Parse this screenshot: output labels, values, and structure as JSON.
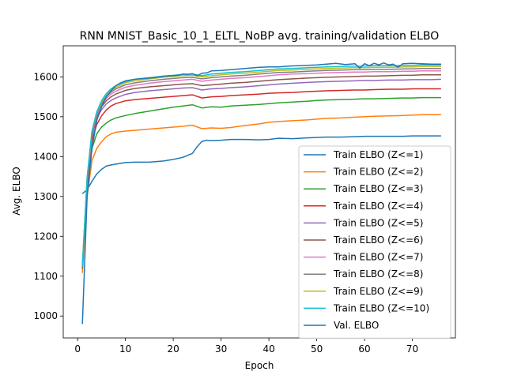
{
  "chart_data": {
    "type": "line",
    "title": "RNN MNIST_Basic_10_1_ELTL_NoBP avg. training/validation ELBO",
    "xlabel": "Epoch",
    "ylabel": "Avg. ELBO",
    "xlim": [
      -3,
      79
    ],
    "ylim": [
      945,
      1678
    ],
    "xticks": [
      0,
      10,
      20,
      30,
      40,
      50,
      60,
      70
    ],
    "yticks": [
      1000,
      1100,
      1200,
      1300,
      1400,
      1500,
      1600
    ],
    "legend_position": "lower-right",
    "series": [
      {
        "name": "Train ELBO (Z<=1)",
        "color": "#1f77b4",
        "x": [
          1,
          2,
          3,
          4,
          5,
          6,
          7,
          8,
          10,
          12,
          15,
          18,
          20,
          22,
          24,
          25,
          26,
          27,
          28,
          30,
          32,
          35,
          38,
          40,
          42,
          45,
          48,
          50,
          52,
          55,
          58,
          60,
          62,
          65,
          68,
          70,
          72,
          74,
          76
        ],
        "y": [
          1307,
          1317,
          1338,
          1356,
          1368,
          1376,
          1379,
          1381,
          1385,
          1386,
          1386,
          1389,
          1393,
          1398,
          1408,
          1425,
          1438,
          1441,
          1440,
          1441,
          1443,
          1443,
          1442,
          1443,
          1446,
          1445,
          1447,
          1448,
          1449,
          1449,
          1450,
          1451,
          1451,
          1451,
          1451,
          1452,
          1452,
          1452,
          1452
        ]
      },
      {
        "name": "Train ELBO (Z<=2)",
        "color": "#ff7f0e",
        "x": [
          1,
          2,
          3,
          4,
          5,
          6,
          7,
          8,
          10,
          12,
          15,
          18,
          20,
          22,
          24,
          26,
          28,
          30,
          32,
          35,
          38,
          40,
          42,
          45,
          48,
          50,
          52,
          55,
          58,
          60,
          62,
          65,
          68,
          70,
          72,
          74,
          76
        ],
        "y": [
          1108,
          1300,
          1390,
          1420,
          1437,
          1450,
          1457,
          1461,
          1464,
          1466,
          1469,
          1472,
          1474,
          1476,
          1479,
          1470,
          1472,
          1471,
          1473,
          1478,
          1482,
          1486,
          1488,
          1490,
          1492,
          1494,
          1496,
          1497,
          1499,
          1500,
          1501,
          1502,
          1503,
          1504,
          1505,
          1505,
          1505
        ]
      },
      {
        "name": "Train ELBO (Z<=3)",
        "color": "#2ca02c",
        "x": [
          1,
          2,
          3,
          4,
          5,
          6,
          7,
          8,
          10,
          12,
          15,
          18,
          20,
          22,
          24,
          26,
          28,
          30,
          32,
          35,
          38,
          40,
          42,
          45,
          48,
          50,
          52,
          55,
          58,
          60,
          62,
          65,
          68,
          70,
          72,
          74,
          76
        ],
        "y": [
          1118,
          1320,
          1420,
          1457,
          1474,
          1484,
          1492,
          1497,
          1503,
          1508,
          1514,
          1520,
          1524,
          1527,
          1530,
          1522,
          1525,
          1524,
          1527,
          1529,
          1531,
          1533,
          1535,
          1537,
          1539,
          1541,
          1542,
          1543,
          1544,
          1545,
          1545,
          1546,
          1547,
          1547,
          1548,
          1548,
          1548
        ]
      },
      {
        "name": "Train ELBO (Z<=4)",
        "color": "#d62728",
        "x": [
          1,
          2,
          3,
          4,
          5,
          6,
          7,
          8,
          10,
          12,
          15,
          18,
          20,
          22,
          24,
          26,
          28,
          30,
          32,
          35,
          38,
          40,
          42,
          45,
          48,
          50,
          52,
          55,
          58,
          60,
          62,
          65,
          68,
          70,
          72,
          74,
          76
        ],
        "y": [
          1120,
          1330,
          1440,
          1480,
          1502,
          1517,
          1527,
          1533,
          1540,
          1543,
          1546,
          1549,
          1551,
          1553,
          1555,
          1547,
          1550,
          1551,
          1553,
          1555,
          1557,
          1559,
          1560,
          1561,
          1563,
          1564,
          1565,
          1566,
          1567,
          1567,
          1568,
          1569,
          1569,
          1570,
          1570,
          1570,
          1570
        ]
      },
      {
        "name": "Train ELBO (Z<=5)",
        "color": "#9467bd",
        "x": [
          1,
          2,
          3,
          4,
          5,
          6,
          7,
          8,
          10,
          12,
          15,
          18,
          20,
          22,
          24,
          26,
          28,
          30,
          32,
          35,
          38,
          40,
          42,
          45,
          48,
          50,
          52,
          55,
          58,
          60,
          62,
          65,
          68,
          70,
          72,
          74,
          76
        ],
        "y": [
          1122,
          1335,
          1450,
          1495,
          1518,
          1532,
          1541,
          1547,
          1556,
          1561,
          1565,
          1568,
          1570,
          1572,
          1573,
          1567,
          1570,
          1571,
          1573,
          1575,
          1578,
          1580,
          1582,
          1584,
          1586,
          1587,
          1588,
          1589,
          1590,
          1591,
          1591,
          1592,
          1592,
          1593,
          1593,
          1593,
          1594
        ]
      },
      {
        "name": "Train ELBO (Z<=6)",
        "color": "#8c564b",
        "x": [
          1,
          2,
          3,
          4,
          5,
          6,
          7,
          8,
          10,
          12,
          15,
          18,
          20,
          22,
          24,
          26,
          28,
          30,
          32,
          35,
          38,
          40,
          42,
          45,
          48,
          50,
          52,
          55,
          58,
          60,
          62,
          65,
          68,
          70,
          72,
          74,
          76
        ],
        "y": [
          1123,
          1340,
          1455,
          1500,
          1525,
          1540,
          1550,
          1557,
          1566,
          1571,
          1575,
          1578,
          1580,
          1582,
          1583,
          1578,
          1580,
          1582,
          1584,
          1586,
          1589,
          1591,
          1593,
          1595,
          1597,
          1598,
          1599,
          1600,
          1601,
          1602,
          1602,
          1603,
          1604,
          1604,
          1605,
          1605,
          1605
        ]
      },
      {
        "name": "Train ELBO (Z<=7)",
        "color": "#e377c2",
        "x": [
          1,
          2,
          3,
          4,
          5,
          6,
          7,
          8,
          10,
          12,
          15,
          18,
          20,
          22,
          24,
          26,
          28,
          30,
          32,
          35,
          38,
          40,
          42,
          45,
          48,
          50,
          52,
          55,
          58,
          60,
          62,
          65,
          68,
          70,
          72,
          74,
          76
        ],
        "y": [
          1124,
          1342,
          1458,
          1504,
          1530,
          1546,
          1557,
          1564,
          1574,
          1579,
          1584,
          1588,
          1590,
          1592,
          1594,
          1589,
          1592,
          1594,
          1596,
          1598,
          1601,
          1603,
          1605,
          1607,
          1608,
          1609,
          1610,
          1611,
          1612,
          1612,
          1613,
          1613,
          1614,
          1614,
          1615,
          1615,
          1615
        ]
      },
      {
        "name": "Train ELBO (Z<=8)",
        "color": "#7f7f7f",
        "x": [
          1,
          2,
          3,
          4,
          5,
          6,
          7,
          8,
          10,
          12,
          15,
          18,
          20,
          22,
          24,
          26,
          28,
          30,
          32,
          35,
          38,
          40,
          42,
          45,
          48,
          50,
          52,
          55,
          58,
          60,
          62,
          65,
          68,
          70,
          72,
          74,
          76
        ],
        "y": [
          1125,
          1344,
          1460,
          1507,
          1534,
          1551,
          1562,
          1570,
          1580,
          1585,
          1590,
          1594,
          1596,
          1598,
          1599,
          1595,
          1598,
          1600,
          1602,
          1604,
          1607,
          1609,
          1611,
          1612,
          1614,
          1615,
          1616,
          1617,
          1618,
          1618,
          1619,
          1619,
          1620,
          1620,
          1621,
          1621,
          1621
        ]
      },
      {
        "name": "Train ELBO (Z<=9)",
        "color": "#bcbd22",
        "x": [
          1,
          2,
          3,
          4,
          5,
          6,
          7,
          8,
          10,
          12,
          15,
          18,
          20,
          22,
          24,
          26,
          28,
          30,
          32,
          35,
          38,
          40,
          42,
          45,
          48,
          50,
          52,
          55,
          58,
          60,
          62,
          65,
          68,
          70,
          72,
          74,
          76
        ],
        "y": [
          1126,
          1346,
          1462,
          1510,
          1537,
          1555,
          1566,
          1574,
          1585,
          1590,
          1595,
          1599,
          1601,
          1603,
          1604,
          1600,
          1603,
          1605,
          1607,
          1609,
          1612,
          1614,
          1616,
          1617,
          1619,
          1620,
          1621,
          1622,
          1623,
          1623,
          1624,
          1624,
          1625,
          1625,
          1626,
          1626,
          1626
        ]
      },
      {
        "name": "Train ELBO (Z<=10)",
        "color": "#17becf",
        "x": [
          1,
          2,
          3,
          4,
          5,
          6,
          7,
          8,
          10,
          12,
          15,
          18,
          20,
          22,
          24,
          26,
          28,
          30,
          32,
          35,
          38,
          40,
          42,
          45,
          48,
          50,
          52,
          55,
          58,
          60,
          62,
          65,
          68,
          70,
          72,
          74,
          76
        ],
        "y": [
          1127,
          1348,
          1464,
          1512,
          1540,
          1558,
          1570,
          1578,
          1588,
          1594,
          1598,
          1602,
          1604,
          1606,
          1607,
          1603,
          1607,
          1609,
          1611,
          1613,
          1616,
          1618,
          1620,
          1621,
          1623,
          1624,
          1625,
          1626,
          1627,
          1627,
          1628,
          1628,
          1629,
          1629,
          1630,
          1630,
          1630
        ]
      },
      {
        "name": "Val. ELBO",
        "color": "#1f77b4",
        "x": [
          1,
          2,
          3,
          4,
          5,
          6,
          7,
          8,
          9,
          10,
          12,
          14,
          16,
          18,
          20,
          21,
          22,
          23,
          24,
          25,
          26,
          27,
          28,
          30,
          32,
          34,
          36,
          38,
          40,
          42,
          44,
          46,
          48,
          50,
          52,
          54,
          56,
          58,
          59,
          60,
          61,
          62,
          63,
          64,
          65,
          66,
          67,
          68,
          70,
          72,
          74,
          76
        ],
        "y": [
          980,
          1300,
          1420,
          1490,
          1525,
          1550,
          1565,
          1578,
          1585,
          1590,
          1594,
          1596,
          1598,
          1602,
          1603,
          1604,
          1607,
          1606,
          1608,
          1603,
          1609,
          1610,
          1615,
          1616,
          1618,
          1620,
          1622,
          1624,
          1625,
          1625,
          1627,
          1628,
          1629,
          1630,
          1632,
          1634,
          1631,
          1633,
          1622,
          1633,
          1628,
          1634,
          1630,
          1635,
          1630,
          1632,
          1624,
          1633,
          1634,
          1633,
          1632,
          1632
        ]
      }
    ]
  }
}
